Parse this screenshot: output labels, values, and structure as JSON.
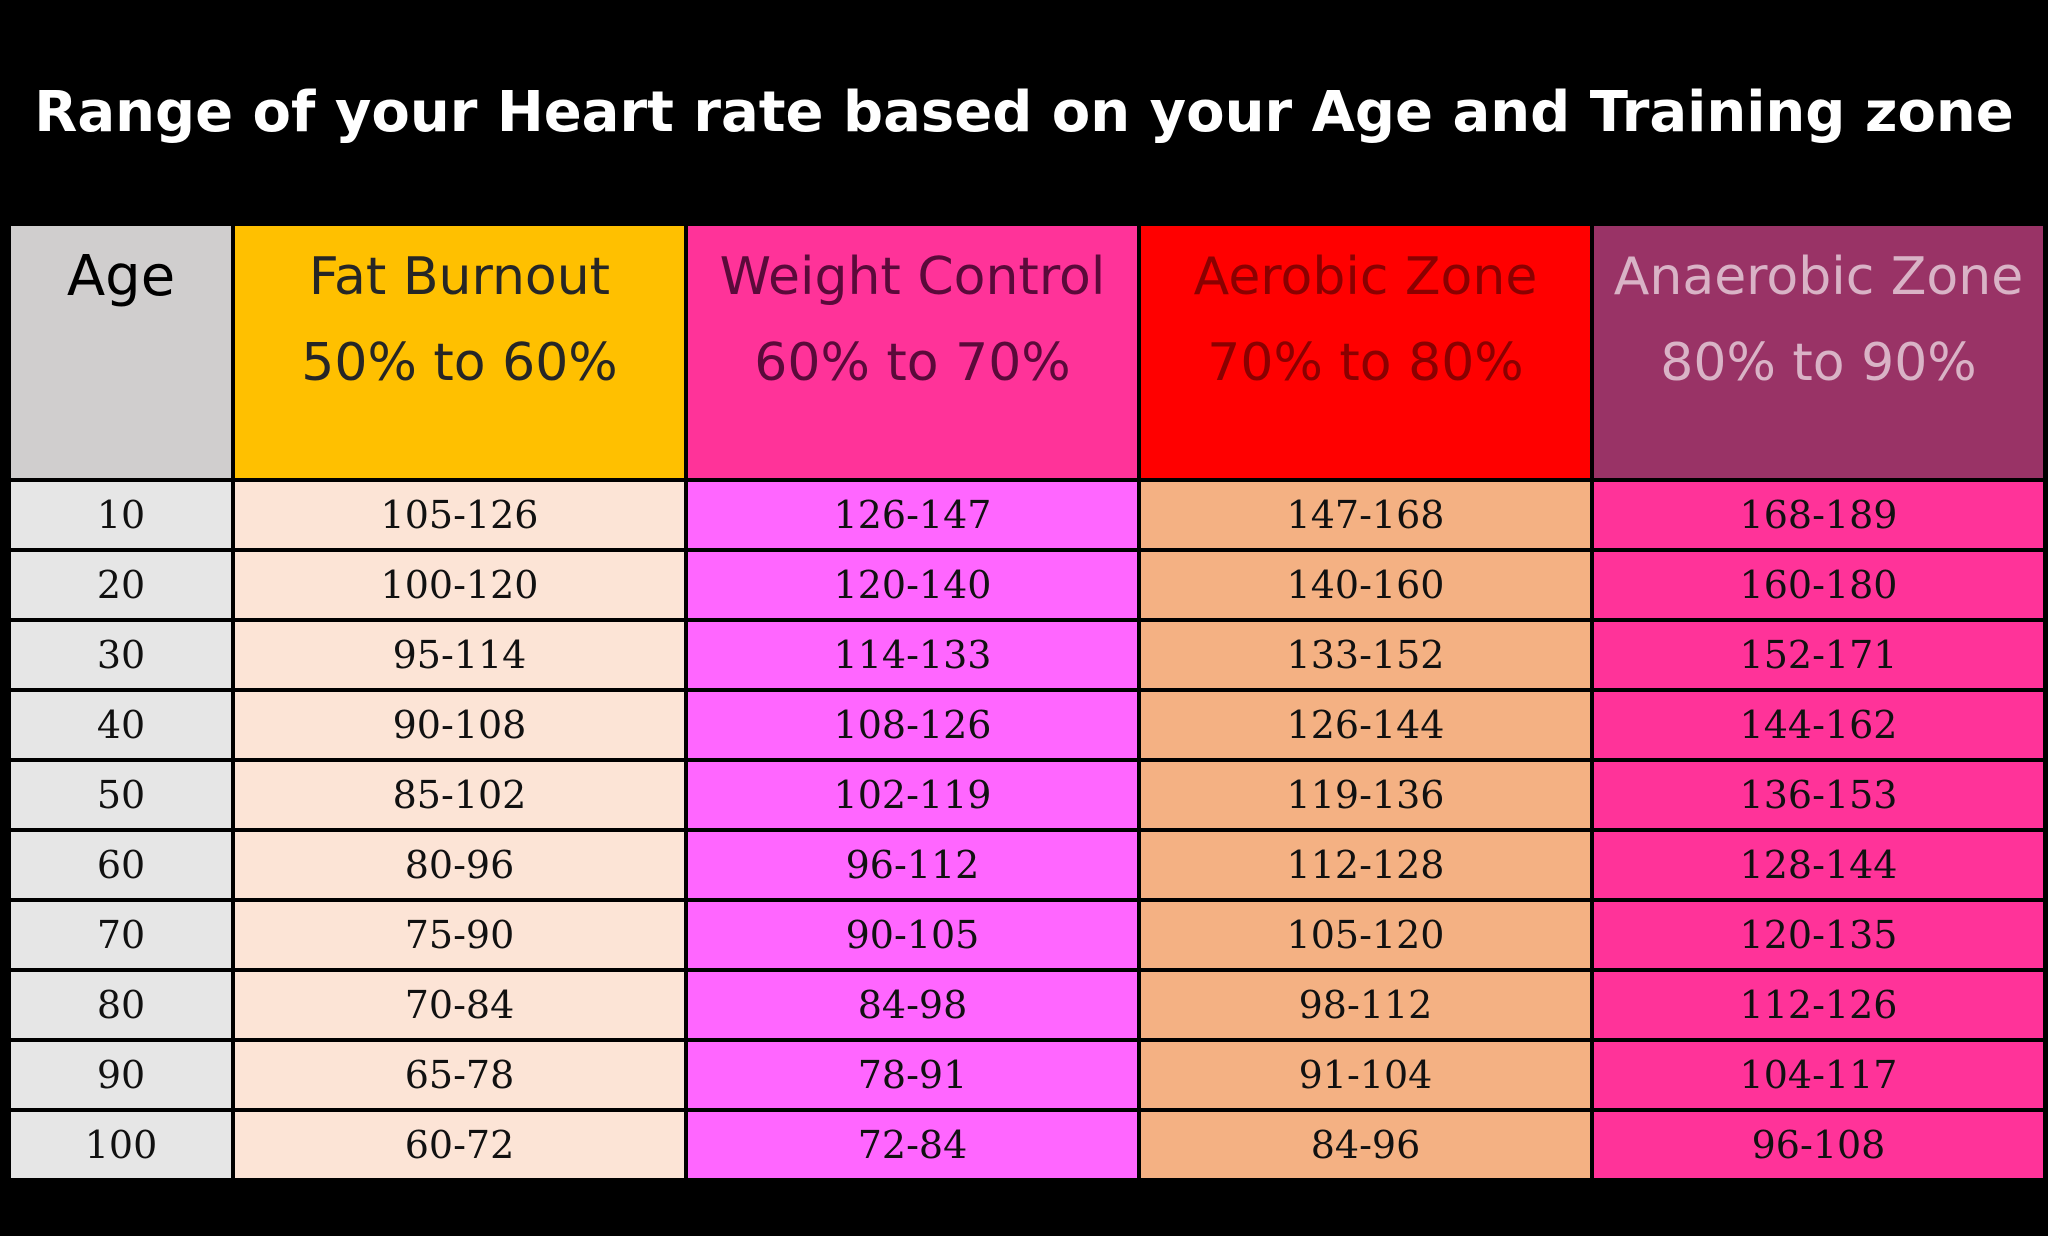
{
  "chart_data": {
    "type": "table",
    "title": "Range of your Heart rate based on your Age and Training zone",
    "columns": [
      {
        "label": "Age",
        "bg": "#d0cece",
        "fg": "#000000",
        "cell_bg": "#e6e6e6"
      },
      {
        "label": "Fat Burnout 50% to 60%",
        "bg": "#ffc000",
        "fg": "#262626",
        "cell_bg": "#fce4d6"
      },
      {
        "label": "Weight Control 60% to 70%",
        "bg": "#ff3399",
        "fg": "#5a0a3a",
        "cell_bg": "#ff66ff"
      },
      {
        "label": "Aerobic Zone 70% to 80%",
        "bg": "#ff0000",
        "fg": "#8a0000",
        "cell_bg": "#f4b183"
      },
      {
        "label": "Anaerobic Zone 80% to 90%",
        "bg": "#993366",
        "fg": "#d9b3c6",
        "cell_bg": "#ff3399"
      }
    ],
    "rows": [
      [
        "10",
        "105-126",
        "126-147",
        "147-168",
        "168-189"
      ],
      [
        "20",
        "100-120",
        "120-140",
        "140-160",
        "160-180"
      ],
      [
        "30",
        "95-114",
        "114-133",
        "133-152",
        "152-171"
      ],
      [
        "40",
        "90-108",
        "108-126",
        "126-144",
        "144-162"
      ],
      [
        "50",
        "85-102",
        "102-119",
        "119-136",
        "136-153"
      ],
      [
        "60",
        "80-96",
        "96-112",
        "112-128",
        "128-144"
      ],
      [
        "70",
        "75-90",
        "90-105",
        "105-120",
        "120-135"
      ],
      [
        "80",
        "70-84",
        "84-98",
        "98-112",
        "112-126"
      ],
      [
        "90",
        "65-78",
        "78-91",
        "91-104",
        "104-117"
      ],
      [
        "100",
        "60-72",
        "72-84",
        "84-96",
        "96-108"
      ]
    ]
  }
}
